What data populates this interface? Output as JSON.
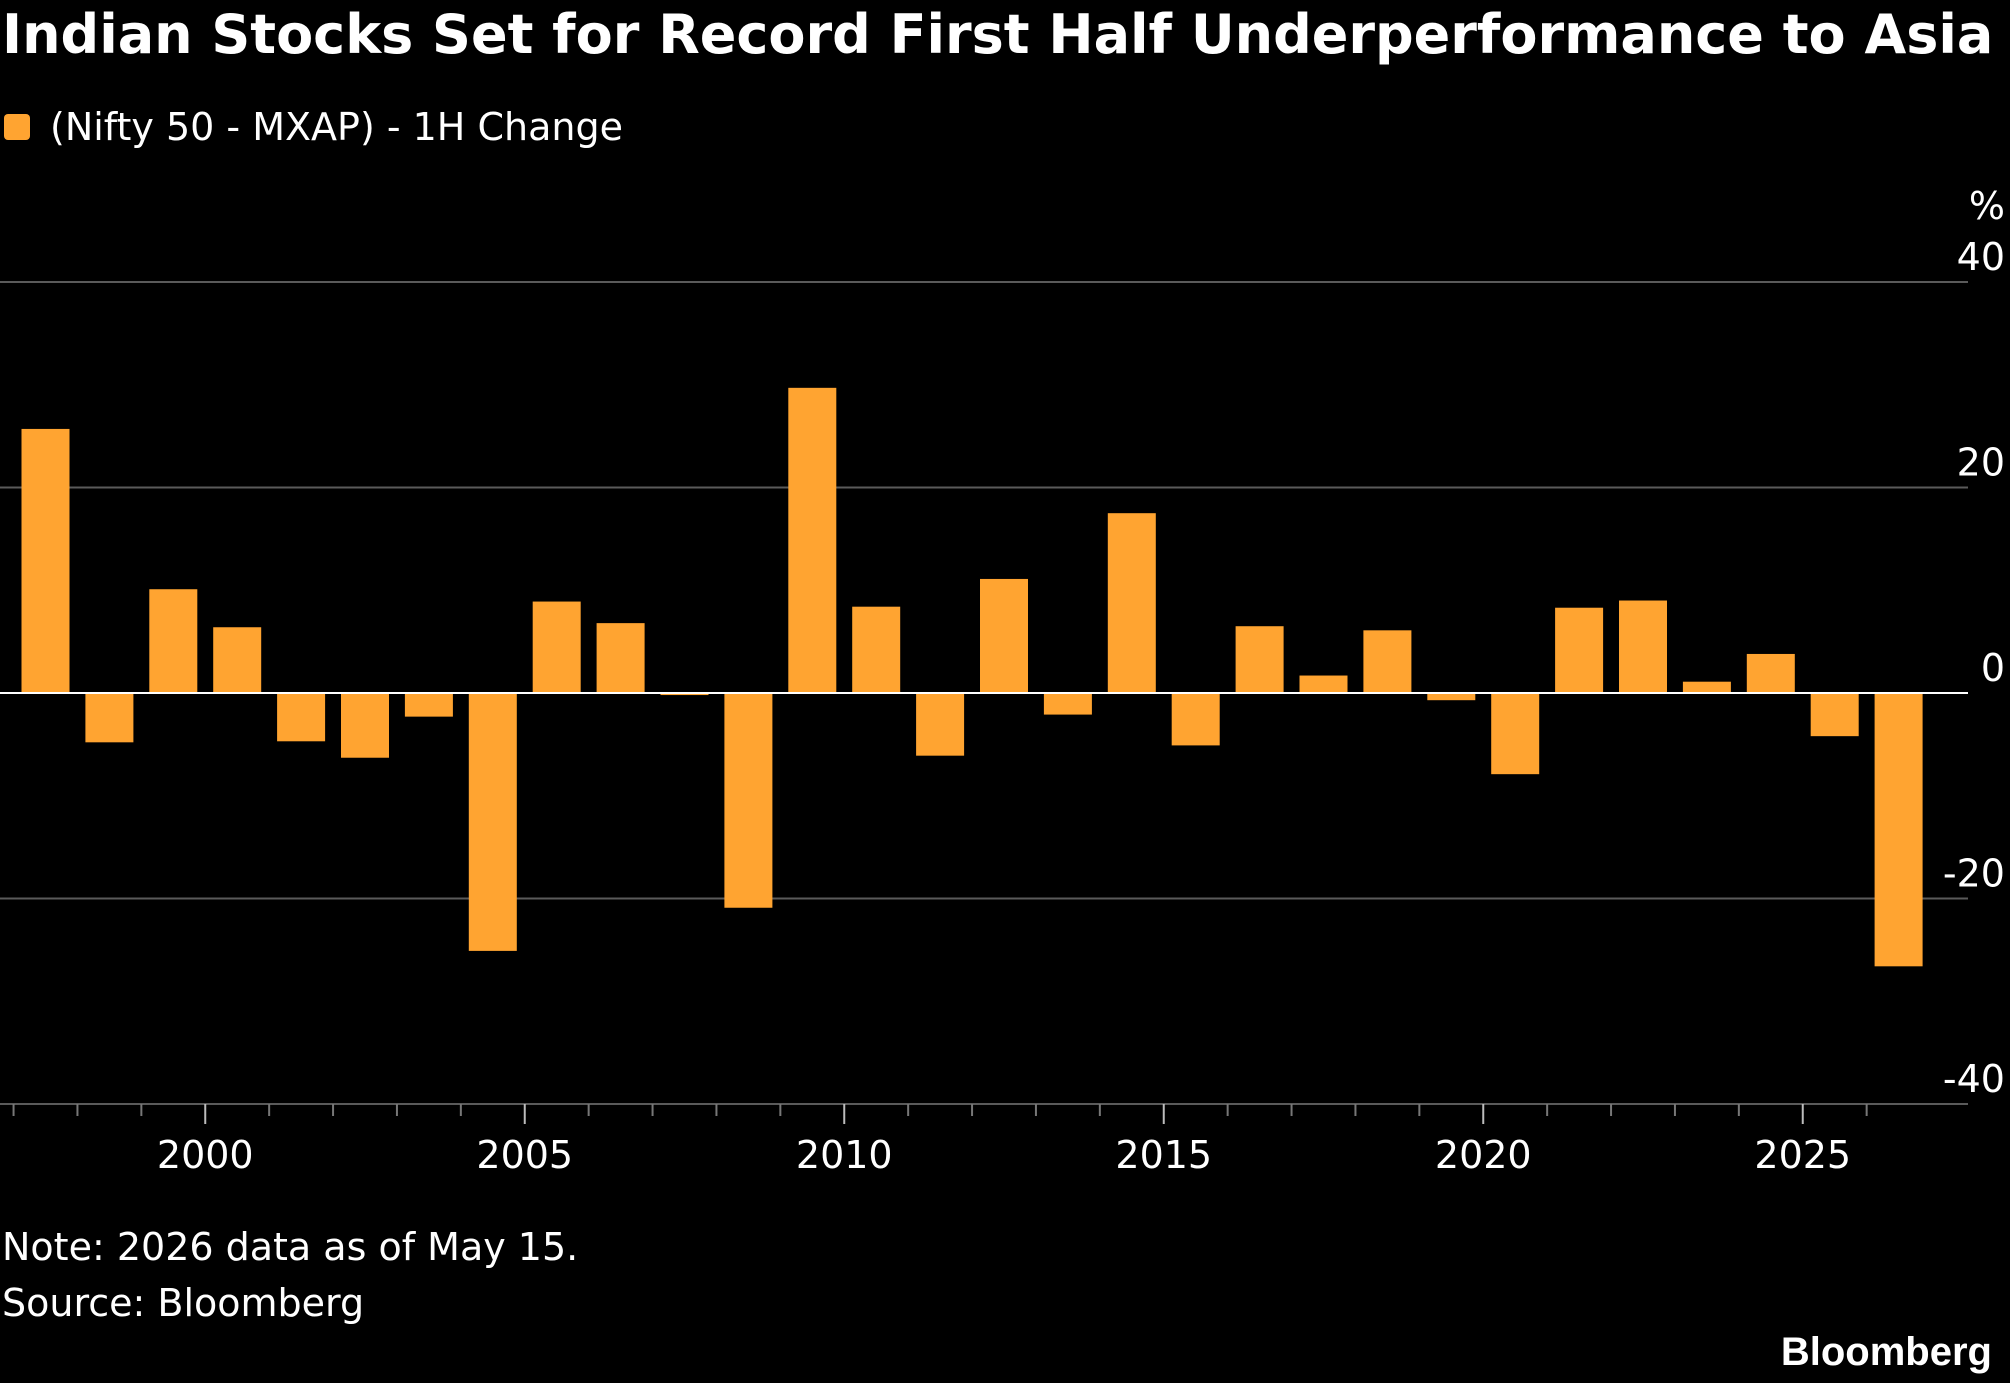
{
  "colors": {
    "background": "#000000",
    "bar": "#ffa431",
    "grid": "#5a5a5a",
    "zero_line": "#ffffff",
    "text": "#ffffff"
  },
  "chart_data": {
    "type": "bar",
    "title": "Indian Stocks Set for Record First Half Underperformance to Asia",
    "legend": [
      "(Nifty 50 - MXAP) - 1H Change"
    ],
    "legend_position": "top-left",
    "ylabel": "%",
    "y_axis_side": "right",
    "ylim": [
      -40,
      40
    ],
    "y_ticks": [
      40,
      20,
      0,
      -20,
      -40
    ],
    "x_tick_labels": [
      "2000",
      "2005",
      "2010",
      "2015",
      "2020",
      "2025"
    ],
    "grid": true,
    "series": [
      {
        "name": "(Nifty 50 - MXAP) - 1H Change",
        "x": [
          1997,
          1998,
          1999,
          2000,
          2001,
          2002,
          2003,
          2004,
          2005,
          2006,
          2007,
          2008,
          2009,
          2010,
          2011,
          2012,
          2013,
          2014,
          2015,
          2016,
          2017,
          2018,
          2019,
          2020,
          2021,
          2022,
          2023,
          2024,
          2025,
          2026
        ],
        "values": [
          25.7,
          -4.8,
          10.1,
          6.4,
          -4.7,
          -6.3,
          -2.3,
          -25.1,
          8.9,
          6.8,
          -0.2,
          -20.9,
          29.7,
          8.4,
          -6.1,
          11.1,
          -2.1,
          17.5,
          -5.1,
          6.5,
          1.7,
          6.1,
          -0.7,
          -7.9,
          8.3,
          9.0,
          1.1,
          3.8,
          -4.2,
          -26.6
        ]
      }
    ],
    "annotations": [
      "Note: 2026 data as of May 15."
    ]
  },
  "footer": {
    "note": "Note: 2026 data as of May 15.",
    "source": "Source: Bloomberg",
    "brand": "Bloomberg"
  }
}
